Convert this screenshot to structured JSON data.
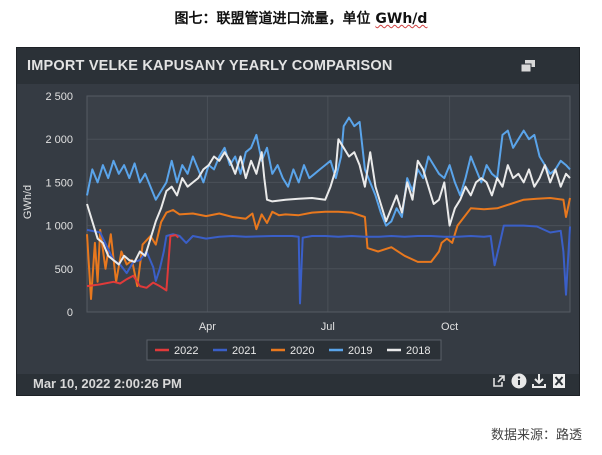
{
  "caption": {
    "prefix": "图七：联盟管道进口流量，单位 ",
    "unit": "GWh/d"
  },
  "source": "数据来源：路透",
  "panel": {
    "title": "IMPORT VELKE KAPUSANY YEARLY COMPARISON",
    "timestamp": "Mar 10, 2022 2:00:26 PM"
  },
  "icons": {
    "expand": "expand-window-icon",
    "external": "external-link-icon",
    "info": "info-icon",
    "download": "download-icon",
    "excel": "excel-export-icon"
  },
  "chart_data": {
    "type": "line",
    "ylabel": "GWh/d",
    "ylim": [
      0,
      2500
    ],
    "y_ticks": [
      0,
      500,
      1000,
      1500,
      2000,
      2500
    ],
    "y_tick_labels": [
      "0",
      "500",
      "1 000",
      "1 500",
      "2 000",
      "2 500"
    ],
    "x_domain": [
      0,
      365
    ],
    "x_ticks": [
      {
        "day": 91,
        "label": "Apr"
      },
      {
        "day": 182,
        "label": "Jul"
      },
      {
        "day": 274,
        "label": "Oct"
      }
    ],
    "legend_position": "bottom",
    "series": [
      {
        "name": "2022",
        "color": "#e03a3a",
        "points": [
          [
            0,
            300
          ],
          [
            10,
            320
          ],
          [
            20,
            350
          ],
          [
            25,
            330
          ],
          [
            30,
            380
          ],
          [
            35,
            420
          ],
          [
            40,
            300
          ],
          [
            45,
            280
          ],
          [
            50,
            340
          ],
          [
            55,
            300
          ],
          [
            60,
            250
          ],
          [
            63,
            880
          ],
          [
            67,
            890
          ],
          [
            69,
            860
          ]
        ]
      },
      {
        "name": "2021",
        "color": "#3a5fc8",
        "points": [
          [
            0,
            950
          ],
          [
            10,
            920
          ],
          [
            20,
            600
          ],
          [
            25,
            550
          ],
          [
            30,
            450
          ],
          [
            35,
            580
          ],
          [
            40,
            600
          ],
          [
            45,
            700
          ],
          [
            50,
            520
          ],
          [
            52,
            360
          ],
          [
            55,
            500
          ],
          [
            58,
            700
          ],
          [
            60,
            880
          ],
          [
            65,
            900
          ],
          [
            70,
            880
          ],
          [
            75,
            800
          ],
          [
            80,
            880
          ],
          [
            90,
            850
          ],
          [
            100,
            870
          ],
          [
            110,
            880
          ],
          [
            120,
            870
          ],
          [
            140,
            880
          ],
          [
            155,
            880
          ],
          [
            160,
            870
          ],
          [
            161,
            100
          ],
          [
            163,
            860
          ],
          [
            170,
            880
          ],
          [
            180,
            880
          ],
          [
            190,
            870
          ],
          [
            200,
            880
          ],
          [
            210,
            870
          ],
          [
            220,
            870
          ],
          [
            230,
            880
          ],
          [
            240,
            870
          ],
          [
            250,
            880
          ],
          [
            260,
            880
          ],
          [
            270,
            870
          ],
          [
            280,
            870
          ],
          [
            290,
            880
          ],
          [
            300,
            870
          ],
          [
            305,
            880
          ],
          [
            308,
            540
          ],
          [
            312,
            800
          ],
          [
            315,
            1000
          ],
          [
            320,
            1000
          ],
          [
            330,
            1000
          ],
          [
            340,
            990
          ],
          [
            350,
            920
          ],
          [
            358,
            940
          ],
          [
            360,
            700
          ],
          [
            362,
            200
          ],
          [
            365,
            990
          ]
        ]
      },
      {
        "name": "2020",
        "color": "#e8781e",
        "points": [
          [
            0,
            900
          ],
          [
            3,
            150
          ],
          [
            6,
            800
          ],
          [
            8,
            350
          ],
          [
            10,
            950
          ],
          [
            14,
            500
          ],
          [
            18,
            900
          ],
          [
            22,
            350
          ],
          [
            26,
            700
          ],
          [
            30,
            550
          ],
          [
            34,
            600
          ],
          [
            38,
            300
          ],
          [
            42,
            780
          ],
          [
            48,
            880
          ],
          [
            52,
            780
          ],
          [
            56,
            1040
          ],
          [
            60,
            1150
          ],
          [
            65,
            1180
          ],
          [
            70,
            1130
          ],
          [
            80,
            1140
          ],
          [
            90,
            1110
          ],
          [
            100,
            1140
          ],
          [
            110,
            1100
          ],
          [
            120,
            1080
          ],
          [
            125,
            1140
          ],
          [
            128,
            960
          ],
          [
            132,
            1130
          ],
          [
            136,
            1030
          ],
          [
            140,
            1160
          ],
          [
            145,
            1120
          ],
          [
            150,
            1130
          ],
          [
            160,
            1120
          ],
          [
            170,
            1150
          ],
          [
            180,
            1160
          ],
          [
            190,
            1160
          ],
          [
            200,
            1150
          ],
          [
            210,
            1100
          ],
          [
            212,
            740
          ],
          [
            220,
            700
          ],
          [
            230,
            750
          ],
          [
            240,
            650
          ],
          [
            250,
            580
          ],
          [
            260,
            580
          ],
          [
            266,
            700
          ],
          [
            268,
            800
          ],
          [
            272,
            850
          ],
          [
            276,
            800
          ],
          [
            280,
            1000
          ],
          [
            290,
            1200
          ],
          [
            300,
            1190
          ],
          [
            310,
            1200
          ],
          [
            320,
            1250
          ],
          [
            330,
            1300
          ],
          [
            340,
            1310
          ],
          [
            350,
            1320
          ],
          [
            360,
            1300
          ],
          [
            362,
            1100
          ],
          [
            365,
            1320
          ]
        ]
      },
      {
        "name": "2019",
        "color": "#5aa4ea",
        "points": [
          [
            0,
            1350
          ],
          [
            4,
            1650
          ],
          [
            8,
            1500
          ],
          [
            12,
            1700
          ],
          [
            16,
            1550
          ],
          [
            20,
            1750
          ],
          [
            24,
            1600
          ],
          [
            28,
            1700
          ],
          [
            32,
            1550
          ],
          [
            36,
            1720
          ],
          [
            40,
            1500
          ],
          [
            44,
            1600
          ],
          [
            48,
            1450
          ],
          [
            52,
            1300
          ],
          [
            56,
            1400
          ],
          [
            60,
            1500
          ],
          [
            64,
            1750
          ],
          [
            68,
            1500
          ],
          [
            72,
            1700
          ],
          [
            76,
            1600
          ],
          [
            80,
            1800
          ],
          [
            84,
            1650
          ],
          [
            88,
            1500
          ],
          [
            92,
            1700
          ],
          [
            96,
            1650
          ],
          [
            100,
            1800
          ],
          [
            104,
            1900
          ],
          [
            108,
            1700
          ],
          [
            112,
            1800
          ],
          [
            116,
            1600
          ],
          [
            120,
            1850
          ],
          [
            124,
            1900
          ],
          [
            128,
            2050
          ],
          [
            132,
            1750
          ],
          [
            136,
            1900
          ],
          [
            140,
            1600
          ],
          [
            144,
            1700
          ],
          [
            148,
            1550
          ],
          [
            152,
            1450
          ],
          [
            156,
            1650
          ],
          [
            160,
            1500
          ],
          [
            164,
            1700
          ],
          [
            168,
            1550
          ],
          [
            172,
            1600
          ],
          [
            176,
            1650
          ],
          [
            180,
            1700
          ],
          [
            184,
            1750
          ],
          [
            188,
            1550
          ],
          [
            192,
            1800
          ],
          [
            194,
            2150
          ],
          [
            198,
            2250
          ],
          [
            202,
            2150
          ],
          [
            206,
            2200
          ],
          [
            210,
            1650
          ],
          [
            214,
            1500
          ],
          [
            218,
            1350
          ],
          [
            222,
            1150
          ],
          [
            226,
            1000
          ],
          [
            230,
            1050
          ],
          [
            234,
            1200
          ],
          [
            238,
            1100
          ],
          [
            242,
            1550
          ],
          [
            246,
            1400
          ],
          [
            250,
            1650
          ],
          [
            254,
            1550
          ],
          [
            258,
            1800
          ],
          [
            262,
            1700
          ],
          [
            266,
            1600
          ],
          [
            270,
            1550
          ],
          [
            274,
            1700
          ],
          [
            278,
            1500
          ],
          [
            282,
            1350
          ],
          [
            286,
            1550
          ],
          [
            290,
            1800
          ],
          [
            294,
            1650
          ],
          [
            298,
            1500
          ],
          [
            302,
            1700
          ],
          [
            306,
            1600
          ],
          [
            310,
            1550
          ],
          [
            314,
            2050
          ],
          [
            318,
            2100
          ],
          [
            322,
            1900
          ],
          [
            326,
            2000
          ],
          [
            330,
            2100
          ],
          [
            334,
            2000
          ],
          [
            338,
            2050
          ],
          [
            342,
            1800
          ],
          [
            346,
            1700
          ],
          [
            350,
            1600
          ],
          [
            354,
            1650
          ],
          [
            358,
            1750
          ],
          [
            362,
            1700
          ],
          [
            365,
            1650
          ]
        ]
      },
      {
        "name": "2018",
        "color": "#eaeaea",
        "points": [
          [
            0,
            1250
          ],
          [
            4,
            1050
          ],
          [
            8,
            850
          ],
          [
            12,
            800
          ],
          [
            16,
            650
          ],
          [
            20,
            600
          ],
          [
            24,
            550
          ],
          [
            28,
            650
          ],
          [
            32,
            600
          ],
          [
            36,
            580
          ],
          [
            40,
            700
          ],
          [
            44,
            650
          ],
          [
            48,
            850
          ],
          [
            52,
            1050
          ],
          [
            56,
            1200
          ],
          [
            60,
            1400
          ],
          [
            64,
            1450
          ],
          [
            68,
            1350
          ],
          [
            72,
            1550
          ],
          [
            76,
            1450
          ],
          [
            80,
            1500
          ],
          [
            84,
            1550
          ],
          [
            88,
            1650
          ],
          [
            92,
            1700
          ],
          [
            96,
            1800
          ],
          [
            100,
            1750
          ],
          [
            104,
            1850
          ],
          [
            108,
            1750
          ],
          [
            112,
            1600
          ],
          [
            116,
            1800
          ],
          [
            120,
            1550
          ],
          [
            124,
            1750
          ],
          [
            128,
            1600
          ],
          [
            132,
            1850
          ],
          [
            134,
            1550
          ],
          [
            136,
            1300
          ],
          [
            140,
            1280
          ],
          [
            150,
            1300
          ],
          [
            160,
            1310
          ],
          [
            170,
            1320
          ],
          [
            180,
            1300
          ],
          [
            184,
            1450
          ],
          [
            188,
            1650
          ],
          [
            190,
            2000
          ],
          [
            194,
            1900
          ],
          [
            198,
            1800
          ],
          [
            202,
            1850
          ],
          [
            206,
            1700
          ],
          [
            210,
            1450
          ],
          [
            214,
            1850
          ],
          [
            218,
            1450
          ],
          [
            222,
            1250
          ],
          [
            226,
            1050
          ],
          [
            230,
            1200
          ],
          [
            234,
            1350
          ],
          [
            238,
            1150
          ],
          [
            242,
            1500
          ],
          [
            246,
            1300
          ],
          [
            250,
            1750
          ],
          [
            254,
            1650
          ],
          [
            258,
            1450
          ],
          [
            262,
            1250
          ],
          [
            266,
            1300
          ],
          [
            270,
            1500
          ],
          [
            274,
            1000
          ],
          [
            278,
            1200
          ],
          [
            282,
            1300
          ],
          [
            286,
            1450
          ],
          [
            290,
            1350
          ],
          [
            294,
            1500
          ],
          [
            298,
            1550
          ],
          [
            302,
            1500
          ],
          [
            306,
            1350
          ],
          [
            310,
            1550
          ],
          [
            314,
            1450
          ],
          [
            318,
            1700
          ],
          [
            322,
            1550
          ],
          [
            326,
            1600
          ],
          [
            330,
            1500
          ],
          [
            334,
            1650
          ],
          [
            338,
            1450
          ],
          [
            342,
            1550
          ],
          [
            346,
            1700
          ],
          [
            350,
            1500
          ],
          [
            354,
            1650
          ],
          [
            358,
            1450
          ],
          [
            362,
            1600
          ],
          [
            365,
            1550
          ]
        ]
      }
    ]
  }
}
